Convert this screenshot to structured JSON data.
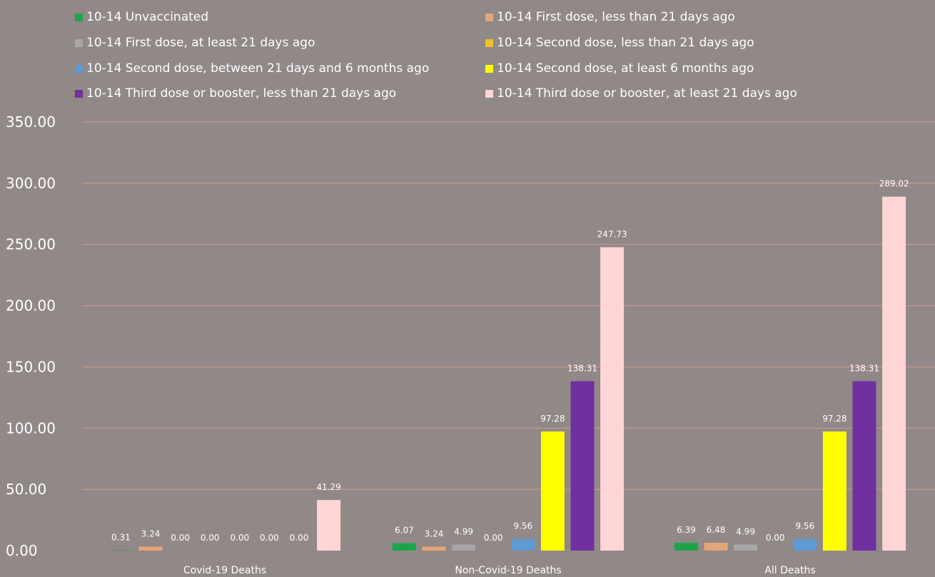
{
  "chart_data": {
    "type": "bar",
    "categories": [
      "Covid-19 Deaths",
      "Non-Covid-19 Deaths",
      "All Deaths"
    ],
    "series": [
      {
        "name": "10-14 Unvaccinated",
        "color": "#1ea54a",
        "values": [
          0.31,
          6.07,
          6.39
        ],
        "labels": [
          "0.31",
          "6.07",
          "6.39"
        ]
      },
      {
        "name": "10-14 First dose, less than 21 days ago",
        "color": "#e4a679",
        "values": [
          3.24,
          3.24,
          6.48
        ],
        "labels": [
          "3.24",
          "3.24",
          "6.48"
        ]
      },
      {
        "name": "10-14 First dose, at least 21 days ago",
        "color": "#a7a7a7",
        "values": [
          0.0,
          4.99,
          4.99
        ],
        "labels": [
          "0.00",
          "4.99",
          "4.99"
        ]
      },
      {
        "name": "10-14 Second dose, less than 21 days ago",
        "color": "#f2c02c",
        "values": [
          0.0,
          0.0,
          0.0
        ],
        "labels": [
          "0.00",
          "0.00",
          "0.00"
        ]
      },
      {
        "name": "10-14 Second dose, between 21 days and 6 months ago",
        "color": "#5f9ad2",
        "values": [
          0.0,
          9.56,
          9.56
        ],
        "labels": [
          "0.00",
          "9.56",
          "9.56"
        ]
      },
      {
        "name": "10-14 Second dose, at least 6 months ago",
        "color": "#ffff00",
        "values": [
          0.0,
          97.28,
          97.28
        ],
        "labels": [
          "0.00",
          "97.28",
          "97.28"
        ]
      },
      {
        "name": "10-14 Third dose or booster, less than 21 days ago",
        "color": "#7030a0",
        "values": [
          0.0,
          138.31,
          138.31
        ],
        "labels": [
          "0.00",
          "138.31",
          "138.31"
        ]
      },
      {
        "name": "10-14 Third dose or booster, at least 21 days ago",
        "color": "#ffd5d5",
        "values": [
          41.29,
          247.73,
          289.02
        ],
        "labels": [
          "41.29",
          "247.73",
          "289.02"
        ]
      }
    ],
    "ylim": [
      0,
      350
    ],
    "yticks": [
      "0.00",
      "50.00",
      "100.00",
      "150.00",
      "200.00",
      "250.00",
      "300.00",
      "350.00"
    ],
    "grid": true,
    "legend_position": "top",
    "colors": {
      "background": "#918888",
      "gridline": "#d69b90",
      "text": "#ffffff"
    }
  }
}
